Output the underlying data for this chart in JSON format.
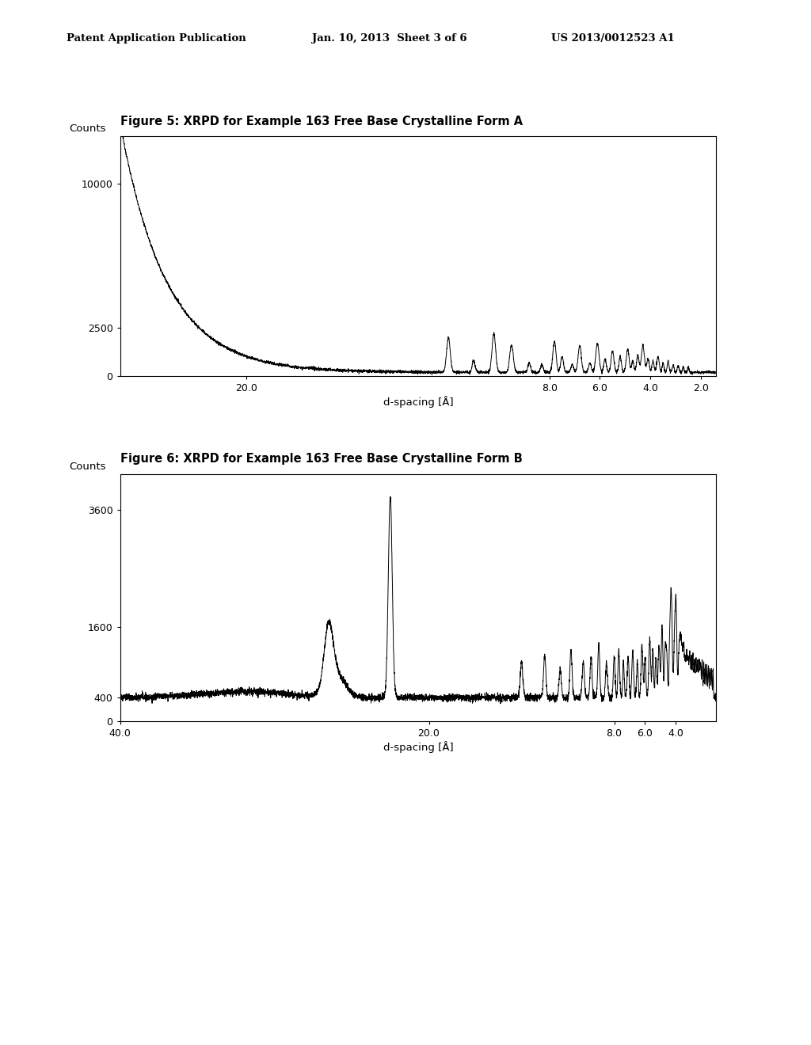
{
  "fig5_title": "Figure 5: XRPD for Example 163 Free Base Crystalline Form A",
  "fig6_title": "Figure 6: XRPD for Example 163 Free Base Crystalline Form B",
  "header_left": "Patent Application Publication",
  "header_mid": "Jan. 10, 2013  Sheet 3 of 6",
  "header_right": "US 2013/0012523 A1",
  "ylabel": "Counts",
  "xlabel": "d-spacing [Å]",
  "fig5_yticks": [
    0,
    2500,
    10000
  ],
  "fig5_ylim": [
    0,
    12500
  ],
  "fig5_xlim": [
    25,
    1.4
  ],
  "fig5_xticks": [
    20.0,
    8.0,
    6.0,
    4.0,
    2.0
  ],
  "fig5_xticklabels": [
    "20.0",
    "8.0",
    "6.0",
    "4.0",
    "2.0"
  ],
  "fig6_yticks": [
    0,
    400,
    1600,
    3600
  ],
  "fig6_ylim": [
    0,
    4200
  ],
  "fig6_xlim": [
    40,
    1.4
  ],
  "fig6_xticks": [
    40.0,
    20.0,
    8.0,
    6.0,
    4.0
  ],
  "fig6_xticklabels": [
    "40.0",
    "20.0",
    "8.0",
    "6.0",
    "4.0"
  ],
  "background_color": "#ffffff",
  "line_color": "#000000"
}
